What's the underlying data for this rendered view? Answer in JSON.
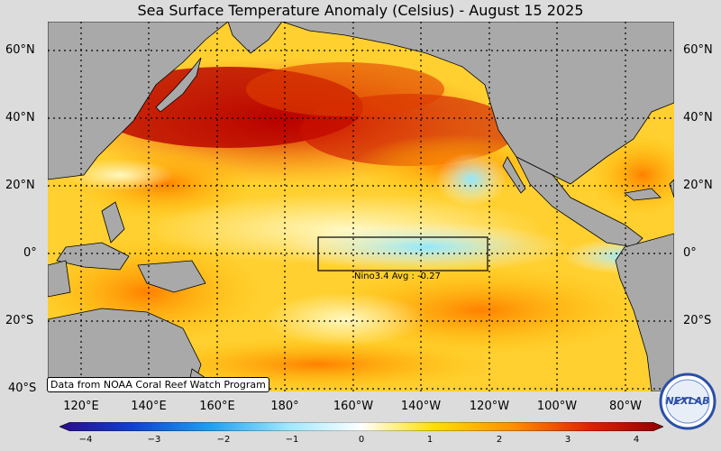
{
  "title": "Sea Surface Temperature Anomaly (Celsius) - August 15 2025",
  "lat_labels": [
    "60°N",
    "40°N",
    "20°N",
    "0°",
    "20°S",
    "40°S"
  ],
  "lon_labels": [
    "120°E",
    "140°E",
    "160°E",
    "180°",
    "160°W",
    "140°W",
    "120°W",
    "100°W",
    "80°W"
  ],
  "colorbar": {
    "ticks": [
      "−4",
      "−3",
      "−2",
      "−1",
      "0",
      "1",
      "2",
      "3",
      "4"
    ],
    "colors": [
      "#2a0a8a",
      "#1040d0",
      "#20a0f0",
      "#a0e8ff",
      "#ffffff",
      "#ffe000",
      "#ff9000",
      "#e02000",
      "#900000"
    ]
  },
  "nino_label": "Nino3.4 Avg : -0.27",
  "credit": "Data from NOAA Coral Reef Watch Program",
  "logo_text": "NEXLAB",
  "colors": {
    "land": "#a9a9a9",
    "ocean_warm": "#ffd020",
    "ocean_hot": "#d01000",
    "ocean_cool": "#b0f0ff"
  }
}
